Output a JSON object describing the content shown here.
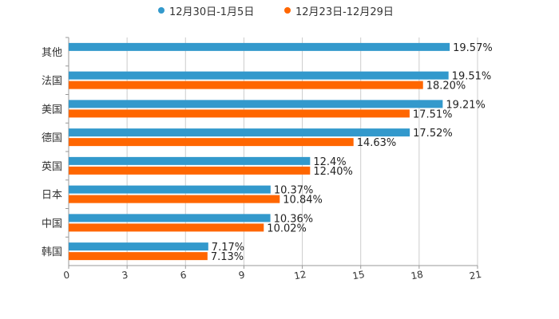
{
  "legend": {
    "series1": "12月30日-1月5日",
    "series2": "12月23日-12月29日"
  },
  "colors": {
    "series1": "#3399cc",
    "series2": "#ff6600",
    "grid": "#cccccc",
    "axis": "#333333"
  },
  "chart_data": {
    "type": "bar",
    "orientation": "horizontal",
    "categories": [
      "其他",
      "法国",
      "美国",
      "德国",
      "英国",
      "日本",
      "中国",
      "韩国"
    ],
    "series": [
      {
        "name": "12月30日-1月5日",
        "values": [
          19.57,
          19.51,
          19.21,
          17.52,
          12.4,
          10.37,
          10.36,
          7.17
        ],
        "labels": [
          "19.57%",
          "19.51%",
          "19.21%",
          "17.52%",
          "12.4%",
          "10.37%",
          "10.36%",
          "7.17%"
        ]
      },
      {
        "name": "12月23日-12月29日",
        "values": [
          null,
          18.2,
          17.51,
          14.63,
          12.4,
          10.84,
          10.02,
          7.13
        ],
        "labels": [
          "",
          "18.20%",
          "17.51%",
          "14.63%",
          "12.40%",
          "10.84%",
          "10.02%",
          "7.13%"
        ]
      }
    ],
    "xlim": [
      0,
      21
    ],
    "xticks": [
      "0",
      "3",
      "6",
      "9",
      "12",
      "15",
      "18",
      "21"
    ],
    "grid": true,
    "legend_position": "top-center"
  }
}
